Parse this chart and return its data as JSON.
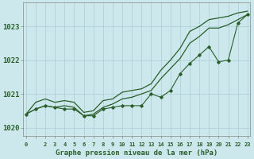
{
  "xlabel": "Graphe pression niveau de la mer (hPa)",
  "background_color": "#cce8ec",
  "grid_color": "#aacdd4",
  "line_color": "#2a5e2a",
  "x_hours": [
    0,
    1,
    2,
    3,
    4,
    5,
    6,
    7,
    8,
    9,
    10,
    11,
    12,
    13,
    14,
    15,
    16,
    17,
    18,
    19,
    20,
    21,
    22,
    23
  ],
  "series_marker": [
    1020.4,
    1020.55,
    1020.65,
    1020.6,
    1020.55,
    1020.55,
    1020.35,
    1020.35,
    1020.55,
    1020.6,
    1020.65,
    1020.65,
    1020.65,
    1021.0,
    1020.9,
    1021.1,
    1021.6,
    1021.9,
    1022.15,
    1022.4,
    1021.95,
    1022.0,
    1023.1,
    1023.35
  ],
  "series_high": [
    1020.4,
    1020.75,
    1020.85,
    1020.75,
    1020.8,
    1020.75,
    1020.45,
    1020.5,
    1020.8,
    1020.85,
    1021.05,
    1021.1,
    1021.15,
    1021.3,
    1021.7,
    1022.0,
    1022.35,
    1022.85,
    1023.0,
    1023.2,
    1023.25,
    1023.3,
    1023.4,
    1023.45
  ],
  "series_low": [
    1020.4,
    1020.55,
    1020.65,
    1020.6,
    1020.65,
    1020.6,
    1020.35,
    1020.4,
    1020.6,
    1020.7,
    1020.85,
    1020.9,
    1021.0,
    1021.1,
    1021.45,
    1021.75,
    1022.05,
    1022.5,
    1022.7,
    1022.95,
    1022.95,
    1023.05,
    1023.2,
    1023.35
  ],
  "ylim": [
    1019.75,
    1023.7
  ],
  "yticks": [
    1020,
    1021,
    1022,
    1023
  ],
  "xlim": [
    -0.3,
    23.3
  ],
  "xtick_labels": [
    "0",
    "",
    "2",
    "3",
    "4",
    "5",
    "6",
    "7",
    "8",
    "9",
    "10",
    "11",
    "12",
    "13",
    "14",
    "15",
    "16",
    "17",
    "18",
    "19",
    "20",
    "21",
    "22",
    "23"
  ]
}
